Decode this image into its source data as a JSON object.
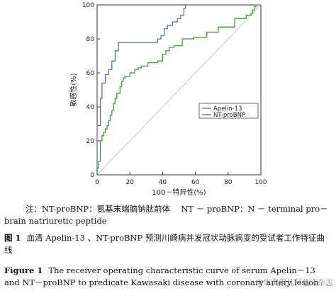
{
  "chart_data": {
    "type": "line",
    "xlabel": "100－特异性(%)",
    "ylabel": "敏感性(%)",
    "xlim": [
      0,
      100
    ],
    "ylim": [
      0,
      100
    ],
    "xticks": [
      "0",
      "20",
      "40",
      "60",
      "80",
      "100"
    ],
    "yticks": [
      "0",
      "20",
      "40",
      "60",
      "80",
      "100"
    ],
    "grid": false,
    "legend_position": "center-right",
    "reference_line": true,
    "series": [
      {
        "name": "Apelin-13",
        "color": "#5b6db5",
        "x": [
          0,
          0,
          2,
          2,
          3,
          3,
          5,
          5,
          7,
          7,
          9,
          9,
          11,
          11,
          13,
          13,
          20,
          24,
          27,
          30,
          30,
          37,
          37,
          39,
          39,
          41,
          41,
          43,
          43,
          46,
          46,
          49,
          49,
          51,
          51,
          53,
          53,
          54,
          54
        ],
        "y": [
          0,
          29,
          29,
          45,
          45,
          54,
          54,
          59,
          59,
          62,
          62,
          67,
          67,
          73,
          73,
          78,
          78,
          78,
          78,
          78,
          78,
          78,
          80,
          80,
          82,
          82,
          86,
          86,
          88,
          88,
          90,
          90,
          92,
          92,
          94,
          94,
          98,
          98,
          100
        ]
      },
      {
        "name": "NT-proBNP",
        "color": "#3f9a3a",
        "x": [
          0,
          0,
          1,
          1,
          2,
          2,
          3,
          3,
          4,
          4,
          5,
          5,
          6,
          6,
          7,
          7,
          8,
          8,
          9,
          9,
          10,
          10,
          11,
          11,
          12,
          12,
          14,
          14,
          15,
          15,
          16,
          16,
          17,
          17,
          20,
          20,
          23,
          23,
          25,
          25,
          27,
          27,
          31,
          31,
          37,
          37,
          40,
          40,
          42,
          42,
          44,
          44,
          47,
          47,
          52,
          52,
          59,
          59,
          67,
          67,
          74,
          74,
          84,
          84,
          91,
          91,
          94,
          94,
          95,
          95,
          96,
          96,
          97,
          97,
          100
        ],
        "y": [
          0,
          4,
          4,
          8,
          8,
          20,
          20,
          23,
          23,
          25,
          25,
          27,
          27,
          29,
          29,
          32,
          32,
          35,
          35,
          38,
          38,
          42,
          42,
          45,
          45,
          48,
          48,
          52,
          52,
          55,
          55,
          57,
          57,
          58,
          58,
          60,
          60,
          62,
          62,
          63,
          63,
          64,
          64,
          66,
          66,
          67,
          67,
          71,
          71,
          73,
          73,
          75,
          75,
          76,
          76,
          80,
          80,
          81,
          81,
          84,
          84,
          87,
          87,
          92,
          92,
          94,
          94,
          95,
          95,
          97,
          97,
          99,
          99,
          100,
          100
        ]
      }
    ]
  },
  "captions": {
    "note": "注：NT-proBNP：氨基末端脑钠肽前体　 NT － proBNP：N － terminal pro－brain natriuretic peptide",
    "cn_label": "图 1",
    "cn_text": "血清 Apelin-13 、NT-proBNP 预测川崎病并发冠状动脉病变的受试者工作特征曲线",
    "en_label": "Figure 1",
    "en_text": "The receiver operating characteristic curve of serum Apelin－13 and NT－proBNP to predicate Kawasaki disease with coronary artery lesion"
  },
  "watermark": "中华实用儿科临床杂志"
}
